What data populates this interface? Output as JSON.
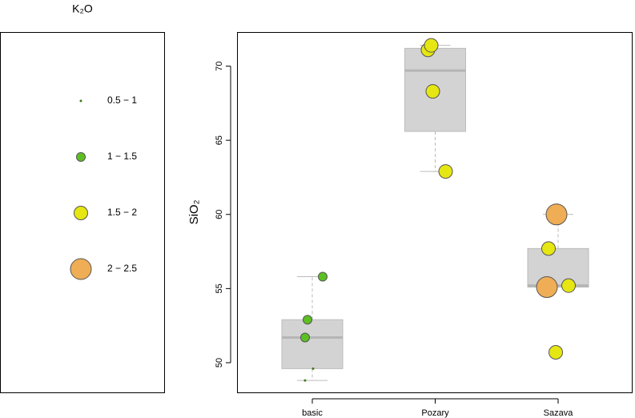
{
  "chart_data": {
    "type": "boxplot",
    "ylabel": "SiO₂",
    "categories": [
      "basic",
      "Pozary",
      "Sazava"
    ],
    "boxes": [
      {
        "min": 48.8,
        "q1": 49.6,
        "median": 51.7,
        "q3": 52.9,
        "max": 55.8
      },
      {
        "min": 62.9,
        "q1": 65.6,
        "median": 69.7,
        "q3": 71.2,
        "max": 71.4
      },
      {
        "min": 55.1,
        "q1": 55.1,
        "median": 55.2,
        "q3": 57.7,
        "max": 60.0
      }
    ],
    "box_color": "#d3d3d3",
    "ylim": [
      48,
      72.3
    ],
    "yticks": [
      50,
      55,
      60,
      65,
      70
    ],
    "size_legend": {
      "title": "K₂O",
      "labels": [
        "0.5 − 1",
        "1 − 1.5",
        "1.5 − 2",
        "2 − 2.5"
      ],
      "colors": [
        "#3d7a1f",
        "#5cbf22",
        "#e6e612",
        "#efad55"
      ]
    },
    "points": [
      {
        "group": 0,
        "value": 55.8,
        "size_class": 1
      },
      {
        "group": 0,
        "value": 52.9,
        "size_class": 1
      },
      {
        "group": 0,
        "value": 51.7,
        "size_class": 1
      },
      {
        "group": 0,
        "value": 49.6,
        "size_class": 0
      },
      {
        "group": 0,
        "value": 48.8,
        "size_class": 0
      },
      {
        "group": 1,
        "value": 71.1,
        "size_class": 2
      },
      {
        "group": 1,
        "value": 71.4,
        "size_class": 2
      },
      {
        "group": 1,
        "value": 68.3,
        "size_class": 2
      },
      {
        "group": 1,
        "value": 62.9,
        "size_class": 2
      },
      {
        "group": 2,
        "value": 60.0,
        "size_class": 3
      },
      {
        "group": 2,
        "value": 57.7,
        "size_class": 2
      },
      {
        "group": 2,
        "value": 55.1,
        "size_class": 3
      },
      {
        "group": 2,
        "value": 55.2,
        "size_class": 2
      },
      {
        "group": 2,
        "value": 50.7,
        "size_class": 2
      }
    ]
  }
}
